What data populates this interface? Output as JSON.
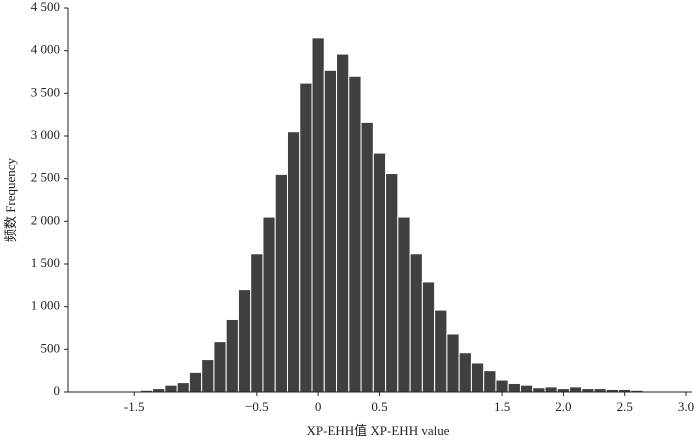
{
  "chart_data": {
    "type": "histogram",
    "x_label": "XP-EHH值 XP-EHH value",
    "y_label": "频数 Frequency",
    "bins": [
      -1.55,
      -1.45,
      -1.35,
      -1.25,
      -1.15,
      -1.05,
      -0.95,
      -0.85,
      -0.75,
      -0.65,
      -0.55,
      -0.45,
      -0.35,
      -0.25,
      -0.15,
      -0.05,
      0.05,
      0.15,
      0.25,
      0.35,
      0.45,
      0.55,
      0.65,
      0.75,
      0.85,
      0.95,
      1.05,
      1.15,
      1.25,
      1.35,
      1.45,
      1.55,
      1.65,
      1.75,
      1.85,
      1.95,
      2.05,
      2.15,
      2.25,
      2.35,
      2.45,
      2.55,
      2.65,
      2.75
    ],
    "values": [
      10,
      20,
      40,
      80,
      110,
      230,
      380,
      590,
      850,
      1200,
      1620,
      2050,
      2550,
      3050,
      3620,
      4150,
      3770,
      3960,
      3700,
      3160,
      2800,
      2560,
      2050,
      1620,
      1290,
      960,
      680,
      460,
      340,
      250,
      140,
      100,
      80,
      50,
      60,
      40,
      60,
      40,
      40,
      30,
      30,
      20,
      10
    ],
    "color": "#404040",
    "xlim": [
      -2.04,
      3.0
    ],
    "xticks": [
      -1.5,
      {
        "value": -0.5,
        "label": "−0.5"
      },
      0,
      0.5,
      1.5,
      {
        "value": 2.0,
        "label": "2.0"
      },
      2.5,
      {
        "value": 3.0,
        "label": "3.0"
      }
    ],
    "ylim": [
      0,
      4500
    ],
    "yticks": [
      0,
      500,
      {
        "value": 1000,
        "label": "1 000"
      },
      {
        "value": 1500,
        "label": "1 500"
      },
      {
        "value": 2000,
        "label": "2 000"
      },
      {
        "value": 2500,
        "label": "2 500"
      },
      {
        "value": 3000,
        "label": "3 000"
      },
      {
        "value": 3500,
        "label": "3 500"
      },
      {
        "value": 4000,
        "label": "4 000"
      },
      {
        "value": 4500,
        "label": "4 500"
      }
    ]
  }
}
